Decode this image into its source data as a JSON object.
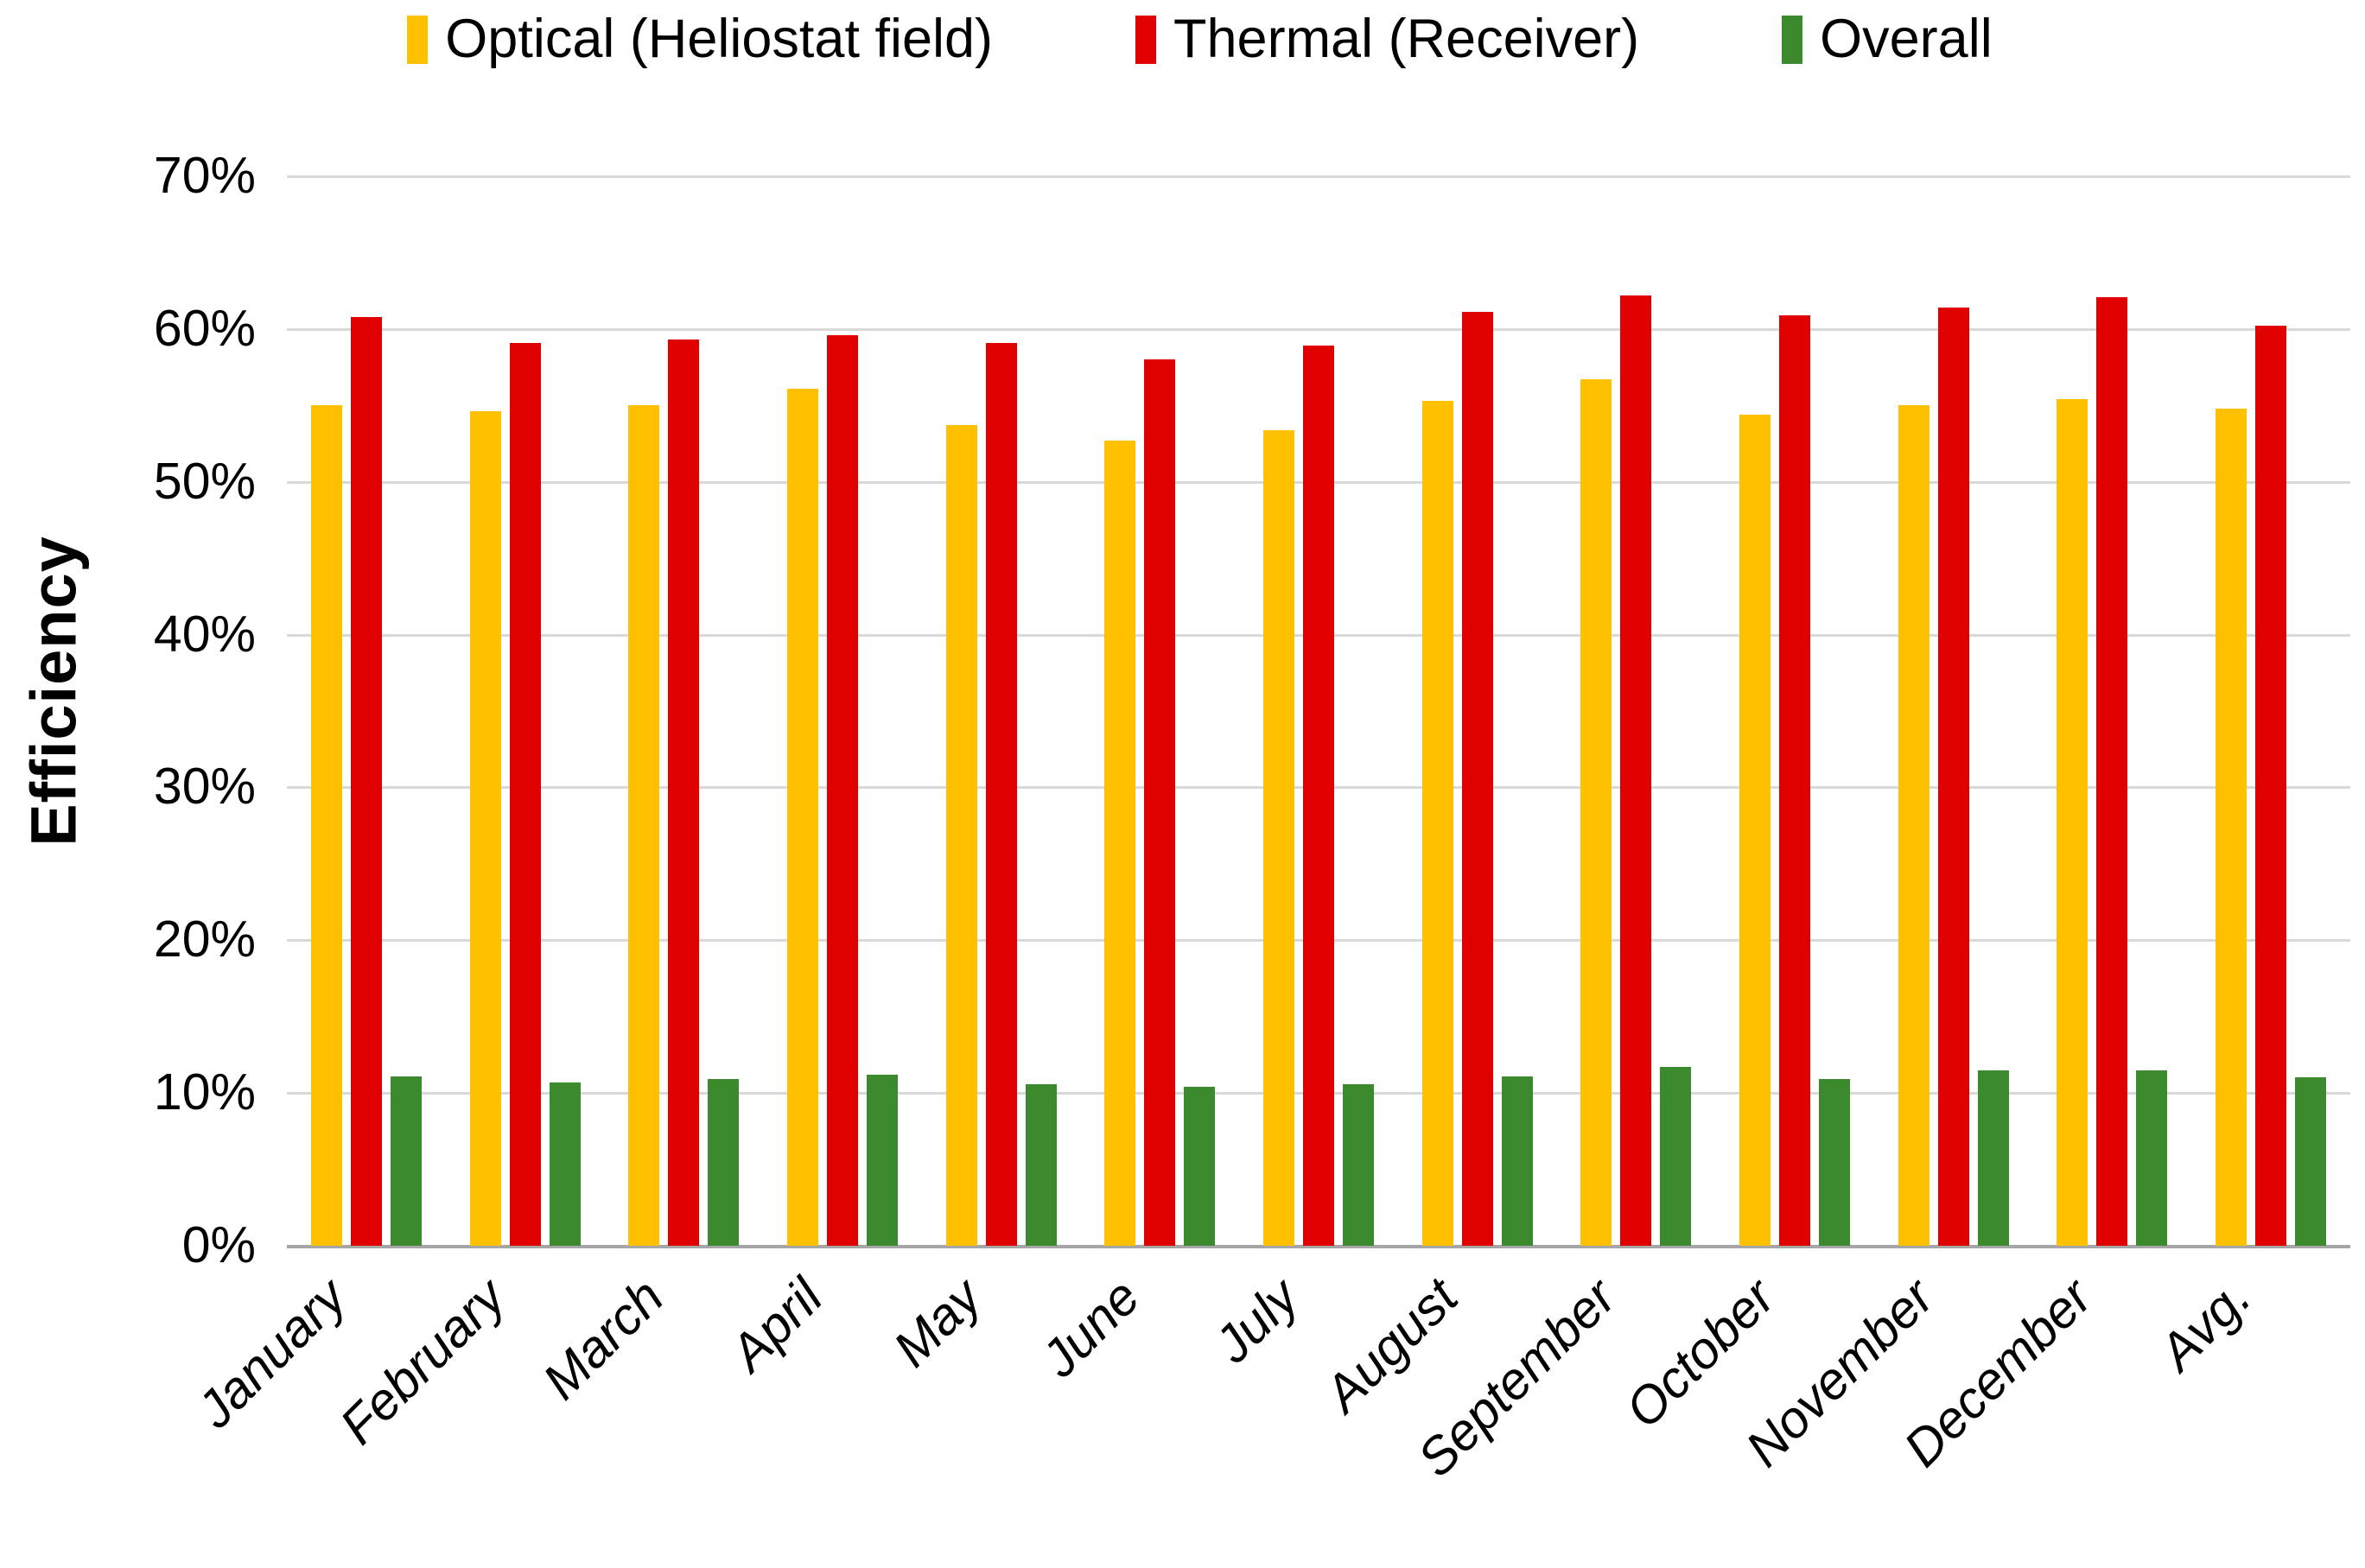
{
  "chart_data": {
    "type": "bar",
    "title": "",
    "xlabel": "",
    "ylabel": "Efficiency",
    "ylim": [
      0,
      70
    ],
    "y_ticks": [
      "0%",
      "10%",
      "20%",
      "30%",
      "40%",
      "50%",
      "60%",
      "70%"
    ],
    "grid": true,
    "legend_position": "top",
    "categories": [
      "January",
      "February",
      "March",
      "April",
      "May",
      "June",
      "July",
      "August",
      "September",
      "October",
      "November",
      "December",
      "Avg."
    ],
    "series": [
      {
        "name": "Optical (Heliostat field)",
        "color": "#FFC000",
        "values": [
          55.0,
          54.6,
          55.0,
          56.1,
          53.7,
          52.7,
          53.4,
          55.3,
          56.7,
          54.4,
          55.0,
          55.4,
          54.8
        ]
      },
      {
        "name": "Thermal (Receiver)",
        "color": "#E00000",
        "values": [
          60.8,
          59.1,
          59.3,
          59.6,
          59.1,
          58.0,
          58.9,
          61.1,
          62.2,
          60.9,
          61.4,
          62.1,
          60.2
        ]
      },
      {
        "name": "Overall",
        "color": "#3B8A2E",
        "values": [
          11.1,
          10.7,
          10.9,
          11.2,
          10.6,
          10.4,
          10.6,
          11.1,
          11.7,
          10.9,
          11.5,
          11.5,
          11.0
        ]
      }
    ]
  }
}
